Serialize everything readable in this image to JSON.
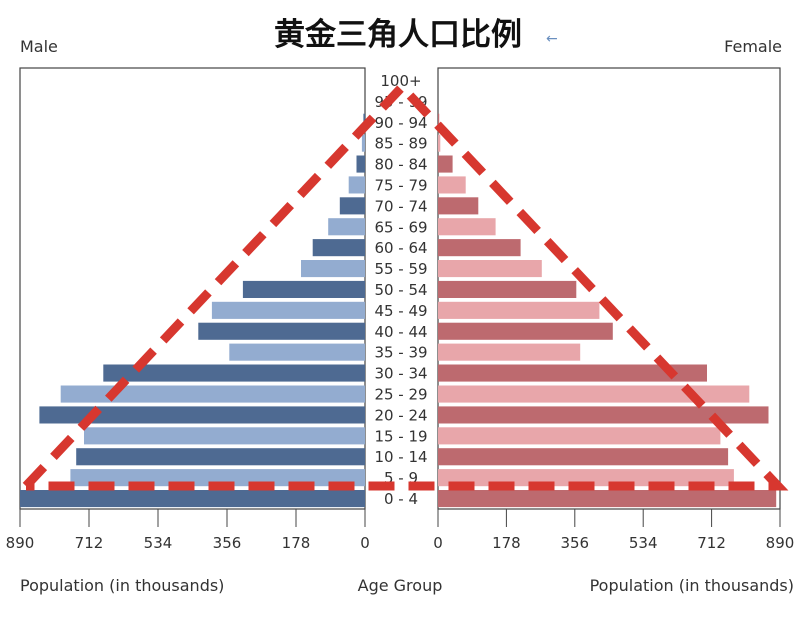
{
  "chart_data": {
    "type": "bar",
    "title": "黄金三角人口比例",
    "title_arrow": "←",
    "left_label": "Male",
    "right_label": "Female",
    "center_axis_label": "Age Group",
    "left_axis_label": "Population (in thousands)",
    "right_axis_label": "Population (in thousands)",
    "xlim": [
      0,
      890
    ],
    "x_ticks": [
      890,
      712,
      534,
      356,
      178,
      0
    ],
    "right_ticks": [
      0,
      178,
      356,
      534,
      712,
      890
    ],
    "categories": [
      "100+",
      "95 - 99",
      "90 - 94",
      "85 - 89",
      "80 - 84",
      "75 - 79",
      "70 - 74",
      "65 - 69",
      "60 - 64",
      "55 - 59",
      "50 - 54",
      "45 - 49",
      "40 - 44",
      "35 - 39",
      "30 - 34",
      "25 - 29",
      "20 - 24",
      "15 - 19",
      "10 - 14",
      "5 - 9",
      "0 - 4"
    ],
    "series": [
      {
        "name": "Male",
        "values": [
          0,
          0,
          4,
          8,
          22,
          42,
          65,
          95,
          135,
          165,
          315,
          395,
          430,
          350,
          675,
          785,
          840,
          725,
          745,
          760,
          890
        ]
      },
      {
        "name": "Female",
        "values": [
          0,
          0,
          3,
          6,
          38,
          72,
          105,
          150,
          215,
          270,
          360,
          420,
          455,
          370,
          700,
          810,
          860,
          735,
          755,
          770,
          880
        ]
      }
    ],
    "male_colors": [
      "#4e6a92",
      "#93acd0"
    ],
    "female_colors": [
      "#bd6a6f",
      "#e8a6aa"
    ],
    "overlay": "dashed triangle",
    "overlay_color": "#d7372f"
  }
}
